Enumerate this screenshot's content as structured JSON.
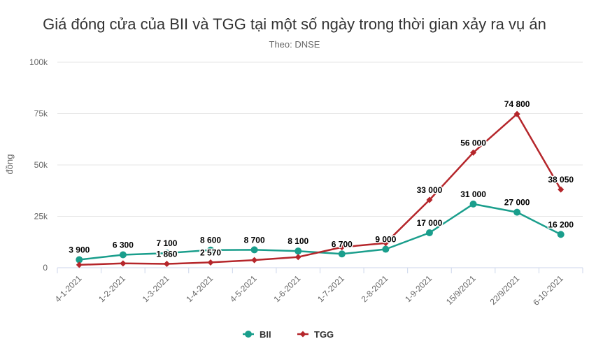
{
  "chart_data": {
    "type": "line",
    "title": "Giá đóng cửa của BII và TGG tại một số ngày trong thời gian xảy ra vụ án",
    "subtitle": "Theo: DNSE",
    "ylabel": "đồng",
    "xlabel": "",
    "ylim": [
      0,
      100000
    ],
    "yticks": [
      {
        "value": 0,
        "label": "0"
      },
      {
        "value": 25000,
        "label": "25k"
      },
      {
        "value": 50000,
        "label": "50k"
      },
      {
        "value": 75000,
        "label": "75k"
      },
      {
        "value": 100000,
        "label": "100k"
      }
    ],
    "grid": true,
    "legend_position": "bottom-center",
    "categories": [
      "4-1-2021",
      "1-2-2021",
      "1-3-2021",
      "1-4-2021",
      "4-5-2021",
      "1-6-2021",
      "1-7-2021",
      "2-8-2021",
      "1-9-2021",
      "15/9/2021",
      "22/9/2021",
      "6-10-2021"
    ],
    "series": [
      {
        "name": "BII",
        "color": "#1a9e8c",
        "marker": "circle",
        "values": [
          3900,
          6300,
          7100,
          8600,
          8700,
          8100,
          6700,
          9000,
          17000,
          31000,
          27000,
          16200
        ],
        "labels": [
          "3 900",
          "6 300",
          "7 100",
          "8 600",
          "8 700",
          "8 100",
          "6 700",
          "9 000",
          "17 000",
          "31 000",
          "27 000",
          "16 200"
        ]
      },
      {
        "name": "TGG",
        "color": "#b5262b",
        "marker": "diamond",
        "values": [
          1400,
          2100,
          1860,
          2570,
          3700,
          5200,
          10000,
          12000,
          33000,
          56000,
          74800,
          38050
        ],
        "labels": [
          null,
          null,
          "1 860",
          "2 570",
          null,
          null,
          null,
          null,
          "33 000",
          "56 000",
          "74 800",
          "38 050"
        ]
      }
    ]
  }
}
